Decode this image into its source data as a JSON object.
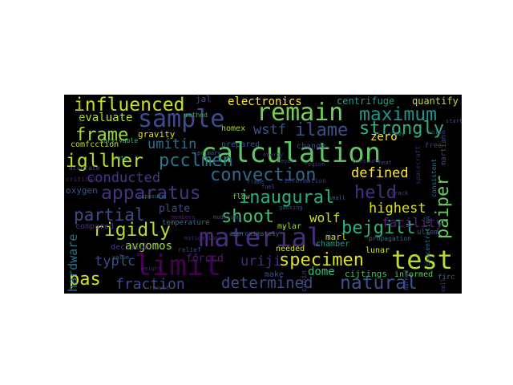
{
  "wordcloud": {
    "background_color": "#000000",
    "words": [
      {
        "text": "sample",
        "color": "#3d4c8a"
      },
      {
        "text": "remain",
        "color": "#73d056"
      },
      {
        "text": "calculation",
        "color": "#5ec962"
      },
      {
        "text": "material",
        "color": "#472d7b"
      },
      {
        "text": "test",
        "color": "#b5de2b"
      },
      {
        "text": "limit",
        "color": "#440154"
      },
      {
        "text": "influenced",
        "color": "#c8e020"
      },
      {
        "text": "maximum",
        "color": "#21918c"
      },
      {
        "text": "strongly",
        "color": "#2db27d"
      },
      {
        "text": "ilame",
        "color": "#3b528b"
      },
      {
        "text": "frame",
        "color": "#a0da39"
      },
      {
        "text": "paiper",
        "color": "#65cb5e"
      },
      {
        "text": "convection",
        "color": "#31688e"
      },
      {
        "text": "apparatus",
        "color": "#46337e"
      },
      {
        "text": "igllher",
        "color": "#b8de29"
      },
      {
        "text": "pcclmen",
        "color": "#2c728e"
      },
      {
        "text": "rigidly",
        "color": "#b4de2c"
      },
      {
        "text": "inaugural",
        "color": "#29af7f"
      },
      {
        "text": "shoot",
        "color": "#45bf70"
      },
      {
        "text": "specimen",
        "color": "#dde318"
      },
      {
        "text": "natural",
        "color": "#3b528b"
      },
      {
        "text": "held",
        "color": "#472f7d"
      },
      {
        "text": "bejgilt",
        "color": "#2db27d"
      },
      {
        "text": "determined",
        "color": "#3e4a89"
      },
      {
        "text": "partial",
        "color": "#3d4d8a"
      },
      {
        "text": "fraction",
        "color": "#3e4a89"
      },
      {
        "text": "pas",
        "color": "#d2e21b"
      },
      {
        "text": "umitin",
        "color": "#2e6e8e"
      },
      {
        "text": "conducted",
        "color": "#443983"
      },
      {
        "text": "wstf",
        "color": "#3a548c"
      },
      {
        "text": "defined",
        "color": "#fde725"
      },
      {
        "text": "highest",
        "color": "#d8e219"
      },
      {
        "text": "typlc",
        "color": "#3e4989"
      },
      {
        "text": "uriji",
        "color": "#472c7a"
      },
      {
        "text": "electronics",
        "color": "#fde725"
      },
      {
        "text": "wolf",
        "color": "#d2e21b"
      },
      {
        "text": "facility",
        "color": "#482475"
      },
      {
        "text": "hardware",
        "color": "#2c728e"
      },
      {
        "text": "evaluate",
        "color": "#b5de2b"
      },
      {
        "text": "centrifuge",
        "color": "#1f9e89"
      },
      {
        "text": "quantify",
        "color": "#b5de2b"
      },
      {
        "text": "avgomos",
        "color": "#9fda3a"
      },
      {
        "text": "dome",
        "color": "#35b779"
      },
      {
        "text": "forccd",
        "color": "#481f70"
      },
      {
        "text": "plate",
        "color": "#3e4a89"
      },
      {
        "text": "gravity",
        "color": "#d8e219"
      },
      {
        "text": "comfcction",
        "color": "#c2df23"
      },
      {
        "text": "nomex",
        "color": "#a8db34"
      },
      {
        "text": "prepared",
        "color": "#3b528b"
      },
      {
        "text": "change",
        "color": "#414487"
      },
      {
        "text": "zero",
        "color": "#fde725"
      },
      {
        "text": "marl",
        "color": "#d5e21a"
      },
      {
        "text": "mylar",
        "color": "#9fda3a"
      },
      {
        "text": "chamber",
        "color": "#1f9e89"
      },
      {
        "text": "lunar",
        "color": "#d2e21b"
      },
      {
        "text": "compared",
        "color": "#46337e"
      },
      {
        "text": "needed",
        "color": "#d5e21a"
      },
      {
        "text": "oxygen",
        "color": "#39568c"
      },
      {
        "text": "decision",
        "color": "#453581"
      },
      {
        "text": "ultem",
        "color": "#3b528b"
      },
      {
        "text": "cijtings",
        "color": "#46c06f"
      },
      {
        "text": "informed",
        "color": "#5ec962"
      },
      {
        "text": "jal",
        "color": "#3e4a89"
      },
      {
        "text": "flow",
        "color": "#7ad151"
      },
      {
        "text": "temperature",
        "color": "#2c728e"
      },
      {
        "text": "make",
        "color": "#3b528b"
      },
      {
        "text": "critical",
        "color": "#482878"
      },
      {
        "text": "survivable",
        "color": "#35b779"
      },
      {
        "text": "firc",
        "color": "#31688e"
      },
      {
        "text": "martian",
        "color": "#3e4989"
      },
      {
        "text": "propagation",
        "color": "#2e6e8e"
      },
      {
        "text": "information",
        "color": "#433e85"
      },
      {
        "text": "cabin",
        "color": "#443983"
      },
      {
        "text": "members",
        "color": "#482173"
      },
      {
        "text": "primary",
        "color": "#2c728e"
      },
      {
        "text": "approximately",
        "color": "#30698e"
      },
      {
        "text": "gassing",
        "color": "#3b528b"
      },
      {
        "text": "modeling",
        "color": "#3e4a89"
      },
      {
        "text": "mitigations",
        "color": "#482878"
      },
      {
        "text": "relief",
        "color": "#3e4989"
      },
      {
        "text": "free",
        "color": "#433e85"
      },
      {
        "text": "method",
        "color": "#35b779"
      },
      {
        "text": "consistent",
        "color": "#2a788e"
      },
      {
        "text": "accurate",
        "color": "#3e4a89"
      },
      {
        "text": "spacecraft",
        "color": "#482475"
      },
      {
        "text": "result",
        "color": "#3e4989"
      },
      {
        "text": "value",
        "color": "#2c728e"
      },
      {
        "text": "region",
        "color": "#453581"
      },
      {
        "text": "burned",
        "color": "#3b528b"
      },
      {
        "text": "level",
        "color": "#433e85"
      },
      {
        "text": "start",
        "color": "#414487"
      },
      {
        "text": "solid",
        "color": "#3e4989"
      },
      {
        "text": "ignition",
        "color": "#482878"
      },
      {
        "text": "exposure",
        "color": "#2c728e"
      },
      {
        "text": "small",
        "color": "#31688e"
      },
      {
        "text": "energy",
        "color": "#46337e"
      },
      {
        "text": "cell",
        "color": "#3e4a89"
      },
      {
        "text": "pressure",
        "color": "#453781"
      },
      {
        "text": "fuel",
        "color": "#3b528b"
      },
      {
        "text": "study",
        "color": "#2a788e"
      },
      {
        "text": "weight",
        "color": "#482173"
      },
      {
        "text": "flame",
        "color": "#3e4989"
      },
      {
        "text": "crack",
        "color": "#433e85"
      },
      {
        "text": "concentration",
        "color": "#2c728e"
      },
      {
        "text": "rate",
        "color": "#35b779"
      },
      {
        "text": "heat",
        "color": "#3e4a89"
      }
    ]
  }
}
